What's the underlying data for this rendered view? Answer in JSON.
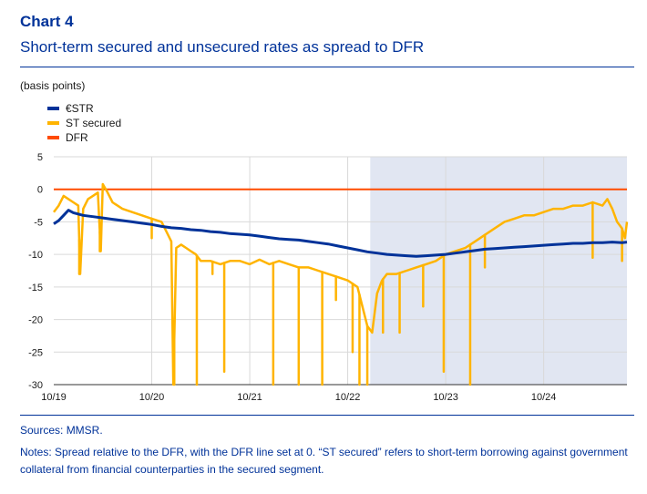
{
  "header": {
    "chart_number": "Chart 4",
    "subtitle": "Short-term secured and unsecured rates as spread to DFR",
    "units": "(basis points)"
  },
  "colors": {
    "estr": "#003299",
    "secured": "#FFB400",
    "dfr": "#FF4B00",
    "shade": "#E1E6F2",
    "grid": "#D9D9D9"
  },
  "chart_data": {
    "type": "line",
    "title": "Short-term secured and unsecured rates as spread to DFR",
    "ylabel": "(basis points)",
    "xlabel": "",
    "ylim": [
      -30,
      5
    ],
    "yticks": [
      5,
      0,
      -5,
      -10,
      -15,
      -20,
      -25,
      -30
    ],
    "x_range": [
      0,
      5.85
    ],
    "xticks": [
      {
        "x": 0,
        "label": "10/19"
      },
      {
        "x": 1,
        "label": "10/20"
      },
      {
        "x": 2,
        "label": "10/21"
      },
      {
        "x": 3,
        "label": "10/22"
      },
      {
        "x": 4,
        "label": "10/23"
      },
      {
        "x": 5,
        "label": "10/24"
      }
    ],
    "shaded_region": {
      "from": 3.23,
      "to": 5.85
    },
    "series": [
      {
        "name": "€STR",
        "key": "estr",
        "x": [
          0,
          0.05,
          0.1,
          0.15,
          0.2,
          0.3,
          0.4,
          0.5,
          0.6,
          0.7,
          0.8,
          0.9,
          1.0,
          1.1,
          1.2,
          1.3,
          1.4,
          1.5,
          1.6,
          1.7,
          1.8,
          1.9,
          2.0,
          2.1,
          2.2,
          2.3,
          2.4,
          2.5,
          2.6,
          2.7,
          2.8,
          2.9,
          3.0,
          3.1,
          3.2,
          3.3,
          3.4,
          3.5,
          3.6,
          3.7,
          3.8,
          3.9,
          4.0,
          4.1,
          4.2,
          4.3,
          4.4,
          4.5,
          4.6,
          4.7,
          4.8,
          4.9,
          5.0,
          5.1,
          5.2,
          5.3,
          5.4,
          5.5,
          5.6,
          5.7,
          5.8,
          5.85
        ],
        "values": [
          -5.3,
          -4.8,
          -4.0,
          -3.2,
          -3.6,
          -4.0,
          -4.2,
          -4.4,
          -4.6,
          -4.8,
          -5.0,
          -5.2,
          -5.4,
          -5.7,
          -5.9,
          -6.0,
          -6.2,
          -6.3,
          -6.5,
          -6.6,
          -6.8,
          -6.9,
          -7.0,
          -7.2,
          -7.4,
          -7.6,
          -7.7,
          -7.8,
          -8.0,
          -8.2,
          -8.4,
          -8.7,
          -9.0,
          -9.3,
          -9.6,
          -9.8,
          -10.0,
          -10.1,
          -10.2,
          -10.3,
          -10.2,
          -10.1,
          -10.0,
          -9.8,
          -9.6,
          -9.4,
          -9.2,
          -9.1,
          -9.0,
          -8.9,
          -8.8,
          -8.7,
          -8.6,
          -8.5,
          -8.4,
          -8.3,
          -8.3,
          -8.2,
          -8.2,
          -8.1,
          -8.2,
          -8.1
        ]
      },
      {
        "name": "ST secured",
        "key": "secured",
        "x": [
          0,
          0.05,
          0.1,
          0.15,
          0.2,
          0.25,
          0.27,
          0.3,
          0.35,
          0.4,
          0.45,
          0.48,
          0.5,
          0.55,
          0.6,
          0.7,
          0.8,
          0.9,
          1.0,
          1.1,
          1.2,
          1.22,
          1.25,
          1.3,
          1.35,
          1.4,
          1.45,
          1.5,
          1.6,
          1.7,
          1.8,
          1.9,
          2.0,
          2.1,
          2.2,
          2.3,
          2.4,
          2.5,
          2.6,
          2.7,
          2.8,
          2.9,
          3.0,
          3.1,
          3.15,
          3.2,
          3.25,
          3.3,
          3.35,
          3.4,
          3.5,
          3.6,
          3.7,
          3.8,
          3.9,
          4.0,
          4.1,
          4.2,
          4.3,
          4.4,
          4.5,
          4.6,
          4.7,
          4.8,
          4.9,
          5.0,
          5.1,
          5.2,
          5.3,
          5.4,
          5.5,
          5.6,
          5.65,
          5.7,
          5.75,
          5.8,
          5.83,
          5.85
        ],
        "values": [
          -3.5,
          -2.5,
          -1.0,
          -1.5,
          -2.0,
          -2.5,
          -13.0,
          -3.0,
          -1.5,
          -1.0,
          -0.5,
          -9.5,
          0.8,
          -0.5,
          -2.0,
          -3.0,
          -3.5,
          -4.0,
          -4.5,
          -5.0,
          -8.0,
          -30.0,
          -9.0,
          -8.5,
          -9.0,
          -9.5,
          -10.0,
          -11.0,
          -11.0,
          -11.5,
          -11.0,
          -11.0,
          -11.5,
          -10.8,
          -11.5,
          -11.0,
          -11.5,
          -12.0,
          -12.0,
          -12.5,
          -13.0,
          -13.5,
          -14.0,
          -15.0,
          -18.0,
          -21.0,
          -22.0,
          -16.0,
          -14.0,
          -13.0,
          -13.0,
          -12.5,
          -12.0,
          -11.5,
          -11.0,
          -10.0,
          -9.5,
          -9.0,
          -8.0,
          -7.0,
          -6.0,
          -5.0,
          -4.5,
          -4.0,
          -4.0,
          -3.5,
          -3.0,
          -3.0,
          -2.5,
          -2.5,
          -2.0,
          -2.5,
          -1.5,
          -3.0,
          -5.0,
          -6.0,
          -7.5,
          -5.0
        ]
      },
      {
        "name": "DFR",
        "key": "dfr",
        "x": [
          0,
          5.85
        ],
        "values": [
          0,
          0
        ]
      }
    ],
    "spikes": [
      {
        "series": "secured",
        "x": 0.26,
        "to": -13.0
      },
      {
        "series": "secured",
        "x": 0.47,
        "to": -9.5
      },
      {
        "series": "secured",
        "x": 1.0,
        "to": -7.5
      },
      {
        "series": "secured",
        "x": 1.23,
        "to": -30.0
      },
      {
        "series": "secured",
        "x": 1.46,
        "to": -30.0
      },
      {
        "series": "secured",
        "x": 1.62,
        "to": -13.0
      },
      {
        "series": "secured",
        "x": 1.74,
        "to": -28.0
      },
      {
        "series": "secured",
        "x": 2.24,
        "to": -30.0
      },
      {
        "series": "secured",
        "x": 2.5,
        "to": -30.0
      },
      {
        "series": "secured",
        "x": 2.74,
        "to": -30.0
      },
      {
        "series": "secured",
        "x": 2.88,
        "to": -17.0
      },
      {
        "series": "secured",
        "x": 3.05,
        "to": -25.0
      },
      {
        "series": "secured",
        "x": 3.12,
        "to": -30.0
      },
      {
        "series": "secured",
        "x": 3.2,
        "to": -30.0
      },
      {
        "series": "secured",
        "x": 3.36,
        "to": -22.0
      },
      {
        "series": "secured",
        "x": 3.53,
        "to": -22.0
      },
      {
        "series": "secured",
        "x": 3.77,
        "to": -18.0
      },
      {
        "series": "secured",
        "x": 3.98,
        "to": -28.0
      },
      {
        "series": "secured",
        "x": 4.25,
        "to": -30.0
      },
      {
        "series": "secured",
        "x": 4.4,
        "to": -12.0
      },
      {
        "series": "secured",
        "x": 5.5,
        "to": -10.5
      },
      {
        "series": "secured",
        "x": 5.8,
        "to": -11.0
      }
    ]
  },
  "footer": {
    "sources": "Sources: MMSR.",
    "notes": "Notes: Spread relative to the DFR, with the DFR line set at 0. “ST secured” refers to short-term borrowing against government collateral from financial counterparties in the secured segment."
  }
}
